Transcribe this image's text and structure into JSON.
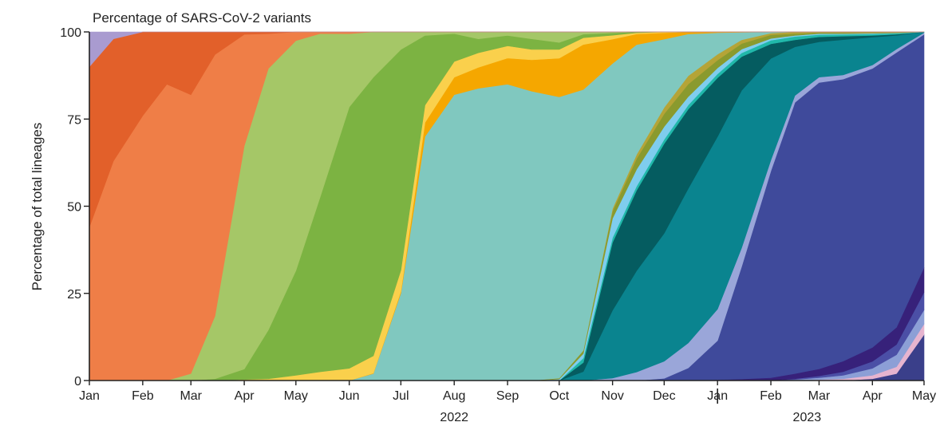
{
  "chart_data": {
    "type": "area",
    "stacked": true,
    "normalized_percent": true,
    "title": "Percentage of SARS-CoV-2 variants",
    "ylabel": "Percentage of total lineages",
    "xlabel": "",
    "ylim": [
      0,
      100
    ],
    "xlim": [
      "2022-01-01",
      "2023-05-01"
    ],
    "y_ticks": [
      "0",
      "25",
      "50",
      "75",
      "100"
    ],
    "x_ticks": [
      {
        "label": "Jan",
        "date": "2022-01-01"
      },
      {
        "label": "Feb",
        "date": "2022-02-01"
      },
      {
        "label": "Mar",
        "date": "2022-03-01"
      },
      {
        "label": "Apr",
        "date": "2022-04-01"
      },
      {
        "label": "May",
        "date": "2022-05-01"
      },
      {
        "label": "Jun",
        "date": "2022-06-01"
      },
      {
        "label": "Jul",
        "date": "2022-07-01"
      },
      {
        "label": "Aug",
        "date": "2022-08-01"
      },
      {
        "label": "Sep",
        "date": "2022-09-01"
      },
      {
        "label": "Oct",
        "date": "2022-10-01"
      },
      {
        "label": "Nov",
        "date": "2022-11-01"
      },
      {
        "label": "Dec",
        "date": "2022-12-01"
      },
      {
        "label": "Jan",
        "date": "2023-01-01"
      },
      {
        "label": "Feb",
        "date": "2023-02-01"
      },
      {
        "label": "Mar",
        "date": "2023-03-01"
      },
      {
        "label": "Apr",
        "date": "2023-04-01"
      },
      {
        "label": "May",
        "date": "2023-05-01"
      }
    ],
    "year_labels": [
      {
        "label": "2022",
        "date": "2022-08-01"
      },
      {
        "label": "2023",
        "date": "2023-02-22"
      }
    ],
    "year_divider_date": "2023-01-01",
    "grid": false,
    "legend": "none",
    "x": [
      "2022-01-01",
      "2022-01-15",
      "2022-02-01",
      "2022-02-15",
      "2022-03-01",
      "2022-03-15",
      "2022-04-01",
      "2022-04-15",
      "2022-05-01",
      "2022-05-15",
      "2022-06-01",
      "2022-06-15",
      "2022-07-01",
      "2022-07-15",
      "2022-08-01",
      "2022-08-15",
      "2022-09-01",
      "2022-09-15",
      "2022-10-01",
      "2022-10-15",
      "2022-11-01",
      "2022-11-15",
      "2022-12-01",
      "2022-12-15",
      "2023-01-01",
      "2023-01-15",
      "2023-02-01",
      "2023-02-15",
      "2023-03-01",
      "2023-03-15",
      "2023-04-01",
      "2023-04-15",
      "2023-05-01"
    ],
    "series": [
      {
        "color": "#3a3f8a",
        "values": [
          0,
          0,
          0,
          0,
          0,
          0,
          0,
          0,
          0,
          0,
          0,
          0,
          0,
          0,
          0,
          0,
          0,
          0,
          0,
          0,
          0,
          0,
          0,
          0,
          0,
          0,
          0,
          0,
          0,
          0,
          0.5,
          2,
          13
        ]
      },
      {
        "color": "#e6b4cf",
        "values": [
          0,
          0,
          0,
          0,
          0,
          0,
          0,
          0,
          0,
          0,
          0,
          0,
          0,
          0,
          0,
          0,
          0,
          0,
          0,
          0,
          0,
          0,
          0,
          0,
          0,
          0,
          0,
          0,
          0.3,
          0.5,
          1,
          2,
          3
        ]
      },
      {
        "color": "#8c9fd6",
        "values": [
          0,
          0,
          0,
          0,
          0,
          0,
          0,
          0,
          0,
          0,
          0,
          0,
          0,
          0,
          0,
          0,
          0,
          0,
          0,
          0,
          0,
          0,
          0,
          0,
          0,
          0,
          0,
          0.3,
          0.5,
          1,
          2,
          3.5,
          4
        ]
      },
      {
        "color": "#4b4fa6",
        "values": [
          0,
          0,
          0,
          0,
          0,
          0,
          0,
          0,
          0,
          0,
          0,
          0,
          0,
          0,
          0,
          0,
          0,
          0,
          0,
          0,
          0,
          0,
          0,
          0,
          0,
          0,
          0,
          0.2,
          0.5,
          1,
          2,
          3,
          5
        ]
      },
      {
        "color": "#37217a",
        "values": [
          0,
          0,
          0,
          0,
          0,
          0,
          0,
          0,
          0,
          0,
          0,
          0,
          0,
          0,
          0,
          0,
          0,
          0,
          0,
          0,
          0,
          0,
          0,
          0,
          0.2,
          0.4,
          0.8,
          1.5,
          2,
          3,
          4,
          5,
          7
        ]
      },
      {
        "color": "#3f4a9b",
        "values": [
          0,
          0,
          0,
          0,
          0,
          0,
          0,
          0,
          0,
          0,
          0,
          0,
          0,
          0,
          0,
          0,
          0,
          0,
          0,
          0,
          0,
          0,
          0.5,
          3,
          10,
          30,
          57,
          78,
          81,
          80,
          80,
          80,
          66
        ]
      },
      {
        "color": "#9aa6d9",
        "values": [
          0,
          0,
          0,
          0,
          0,
          0,
          0,
          0,
          0,
          0,
          0,
          0,
          0,
          0,
          0,
          0,
          0,
          0,
          0,
          0,
          0.5,
          2,
          4,
          6,
          8,
          5,
          3,
          2,
          1.5,
          1.2,
          1,
          1,
          0.5
        ]
      },
      {
        "color": "#0a848f",
        "values": [
          0,
          0,
          0,
          0,
          0,
          0,
          0,
          0,
          0,
          0,
          0,
          0,
          0,
          0,
          0,
          0,
          0,
          0,
          0,
          2,
          14,
          24,
          30,
          37,
          44,
          42,
          28,
          14,
          10,
          10,
          8,
          4,
          0.2
        ]
      },
      {
        "color": "#055c60",
        "values": [
          0,
          0,
          0,
          0,
          0,
          0,
          0,
          0,
          0,
          0,
          0,
          0,
          0,
          0,
          0,
          0,
          0,
          0,
          0,
          2,
          14,
          19,
          21,
          19,
          15,
          9,
          4,
          2,
          1.4,
          1,
          0.5,
          0.3,
          0
        ]
      },
      {
        "color": "#21b8aa",
        "values": [
          0,
          0,
          0,
          0,
          0,
          0,
          0,
          0,
          0,
          0,
          0,
          0,
          0,
          0,
          0,
          0,
          0,
          0,
          0,
          1,
          1,
          1,
          1,
          1,
          1,
          1,
          1,
          1,
          0.6,
          0.5,
          0.4,
          0.3,
          0
        ]
      },
      {
        "color": "#7fcdee",
        "values": [
          0,
          0,
          0,
          0,
          0,
          0,
          0,
          0,
          0,
          0,
          0,
          0,
          0,
          0,
          0,
          0,
          0,
          0,
          0.4,
          1,
          4,
          4,
          3,
          2,
          1.5,
          1,
          0.5,
          0.3,
          0.3,
          0.2,
          0.2,
          0.1,
          0
        ]
      },
      {
        "color": "#8a9a2e",
        "values": [
          0,
          0,
          0,
          0,
          0,
          0,
          0,
          0,
          0,
          0,
          0,
          0,
          0,
          0,
          0,
          0,
          0,
          0,
          0.3,
          0.7,
          1.5,
          2.5,
          3,
          3,
          2,
          1.5,
          1,
          0.5,
          0.3,
          0.3,
          0.2,
          0.2,
          0
        ]
      },
      {
        "color": "#b5a437",
        "values": [
          0,
          0,
          0,
          0,
          0,
          0,
          0,
          0,
          0,
          0,
          0,
          0,
          0,
          0,
          0,
          0,
          0,
          0,
          0,
          0,
          0.5,
          1,
          1.5,
          2,
          1.5,
          1,
          0.5,
          0.5,
          0.2,
          0.2,
          0.2,
          0.1,
          0
        ]
      },
      {
        "color": "#80c8bf",
        "values": [
          0,
          0,
          0,
          0,
          0,
          0,
          0,
          0,
          0,
          0,
          0,
          2,
          25,
          70,
          82,
          84,
          85,
          83,
          80,
          58,
          30,
          26,
          16,
          10,
          5.5,
          2,
          0.3,
          0,
          0,
          0,
          0,
          0,
          0
        ]
      },
      {
        "color": "#f5a700",
        "values": [
          0,
          0,
          0,
          0,
          0,
          0,
          0,
          0,
          0,
          0,
          0,
          0.1,
          0.5,
          4,
          5,
          6,
          7.5,
          9,
          11,
          10,
          5,
          2.5,
          1.5,
          0.5,
          0.2,
          0.1,
          0,
          0,
          0,
          0,
          0,
          0,
          0
        ]
      },
      {
        "color": "#fad04c",
        "values": [
          0,
          0,
          0,
          0,
          0,
          0,
          0.3,
          0.5,
          1.5,
          2.5,
          3.5,
          5,
          6,
          5,
          4.5,
          4.2,
          3.5,
          3,
          2.5,
          1.5,
          0.8,
          0.3,
          0.2,
          0,
          0,
          0,
          0,
          0,
          0,
          0,
          0,
          0,
          0
        ]
      },
      {
        "color": "#7cb342",
        "values": [
          0,
          0,
          0,
          0,
          0,
          0.5,
          3,
          14,
          30,
          50,
          75,
          80,
          63,
          20,
          8,
          4,
          3,
          3,
          2,
          0.8,
          0.5,
          0.2,
          0,
          0,
          0,
          0,
          0,
          0,
          0,
          0,
          0,
          0,
          0
        ]
      },
      {
        "color": "#a5c767",
        "values": [
          0,
          0,
          0,
          0,
          2,
          18,
          64,
          75,
          66,
          47,
          21,
          13,
          5,
          1,
          0.5,
          2,
          1,
          2,
          3,
          0.5,
          0.2,
          0,
          0,
          0,
          0,
          0,
          0,
          0,
          0,
          0,
          0,
          0,
          0
        ]
      },
      {
        "color": "#ef7e47",
        "values": [
          44,
          63,
          76,
          85,
          80,
          75,
          32,
          10,
          2.5,
          0.5,
          0.5,
          0,
          0,
          0,
          0,
          0,
          0,
          0,
          0,
          0,
          0,
          0,
          0,
          0,
          0,
          0,
          0,
          0,
          0,
          0,
          0,
          0,
          0
        ]
      },
      {
        "color": "#e2602a",
        "values": [
          46,
          35,
          24,
          15,
          18,
          6.5,
          0.7,
          0.5,
          0,
          0,
          0,
          0,
          0,
          0,
          0,
          0,
          0,
          0,
          0,
          0,
          0,
          0,
          0,
          0,
          0,
          0,
          0,
          0,
          0,
          0,
          0,
          0,
          0
        ]
      },
      {
        "color": "#a99bd0",
        "values": [
          10,
          2,
          0,
          0,
          0,
          0,
          0,
          0,
          0,
          0,
          0,
          0,
          0,
          0,
          0,
          0,
          0,
          0,
          0,
          0,
          0,
          0,
          0,
          0,
          0,
          0,
          0,
          0,
          0,
          0,
          0,
          0,
          0
        ]
      }
    ]
  }
}
